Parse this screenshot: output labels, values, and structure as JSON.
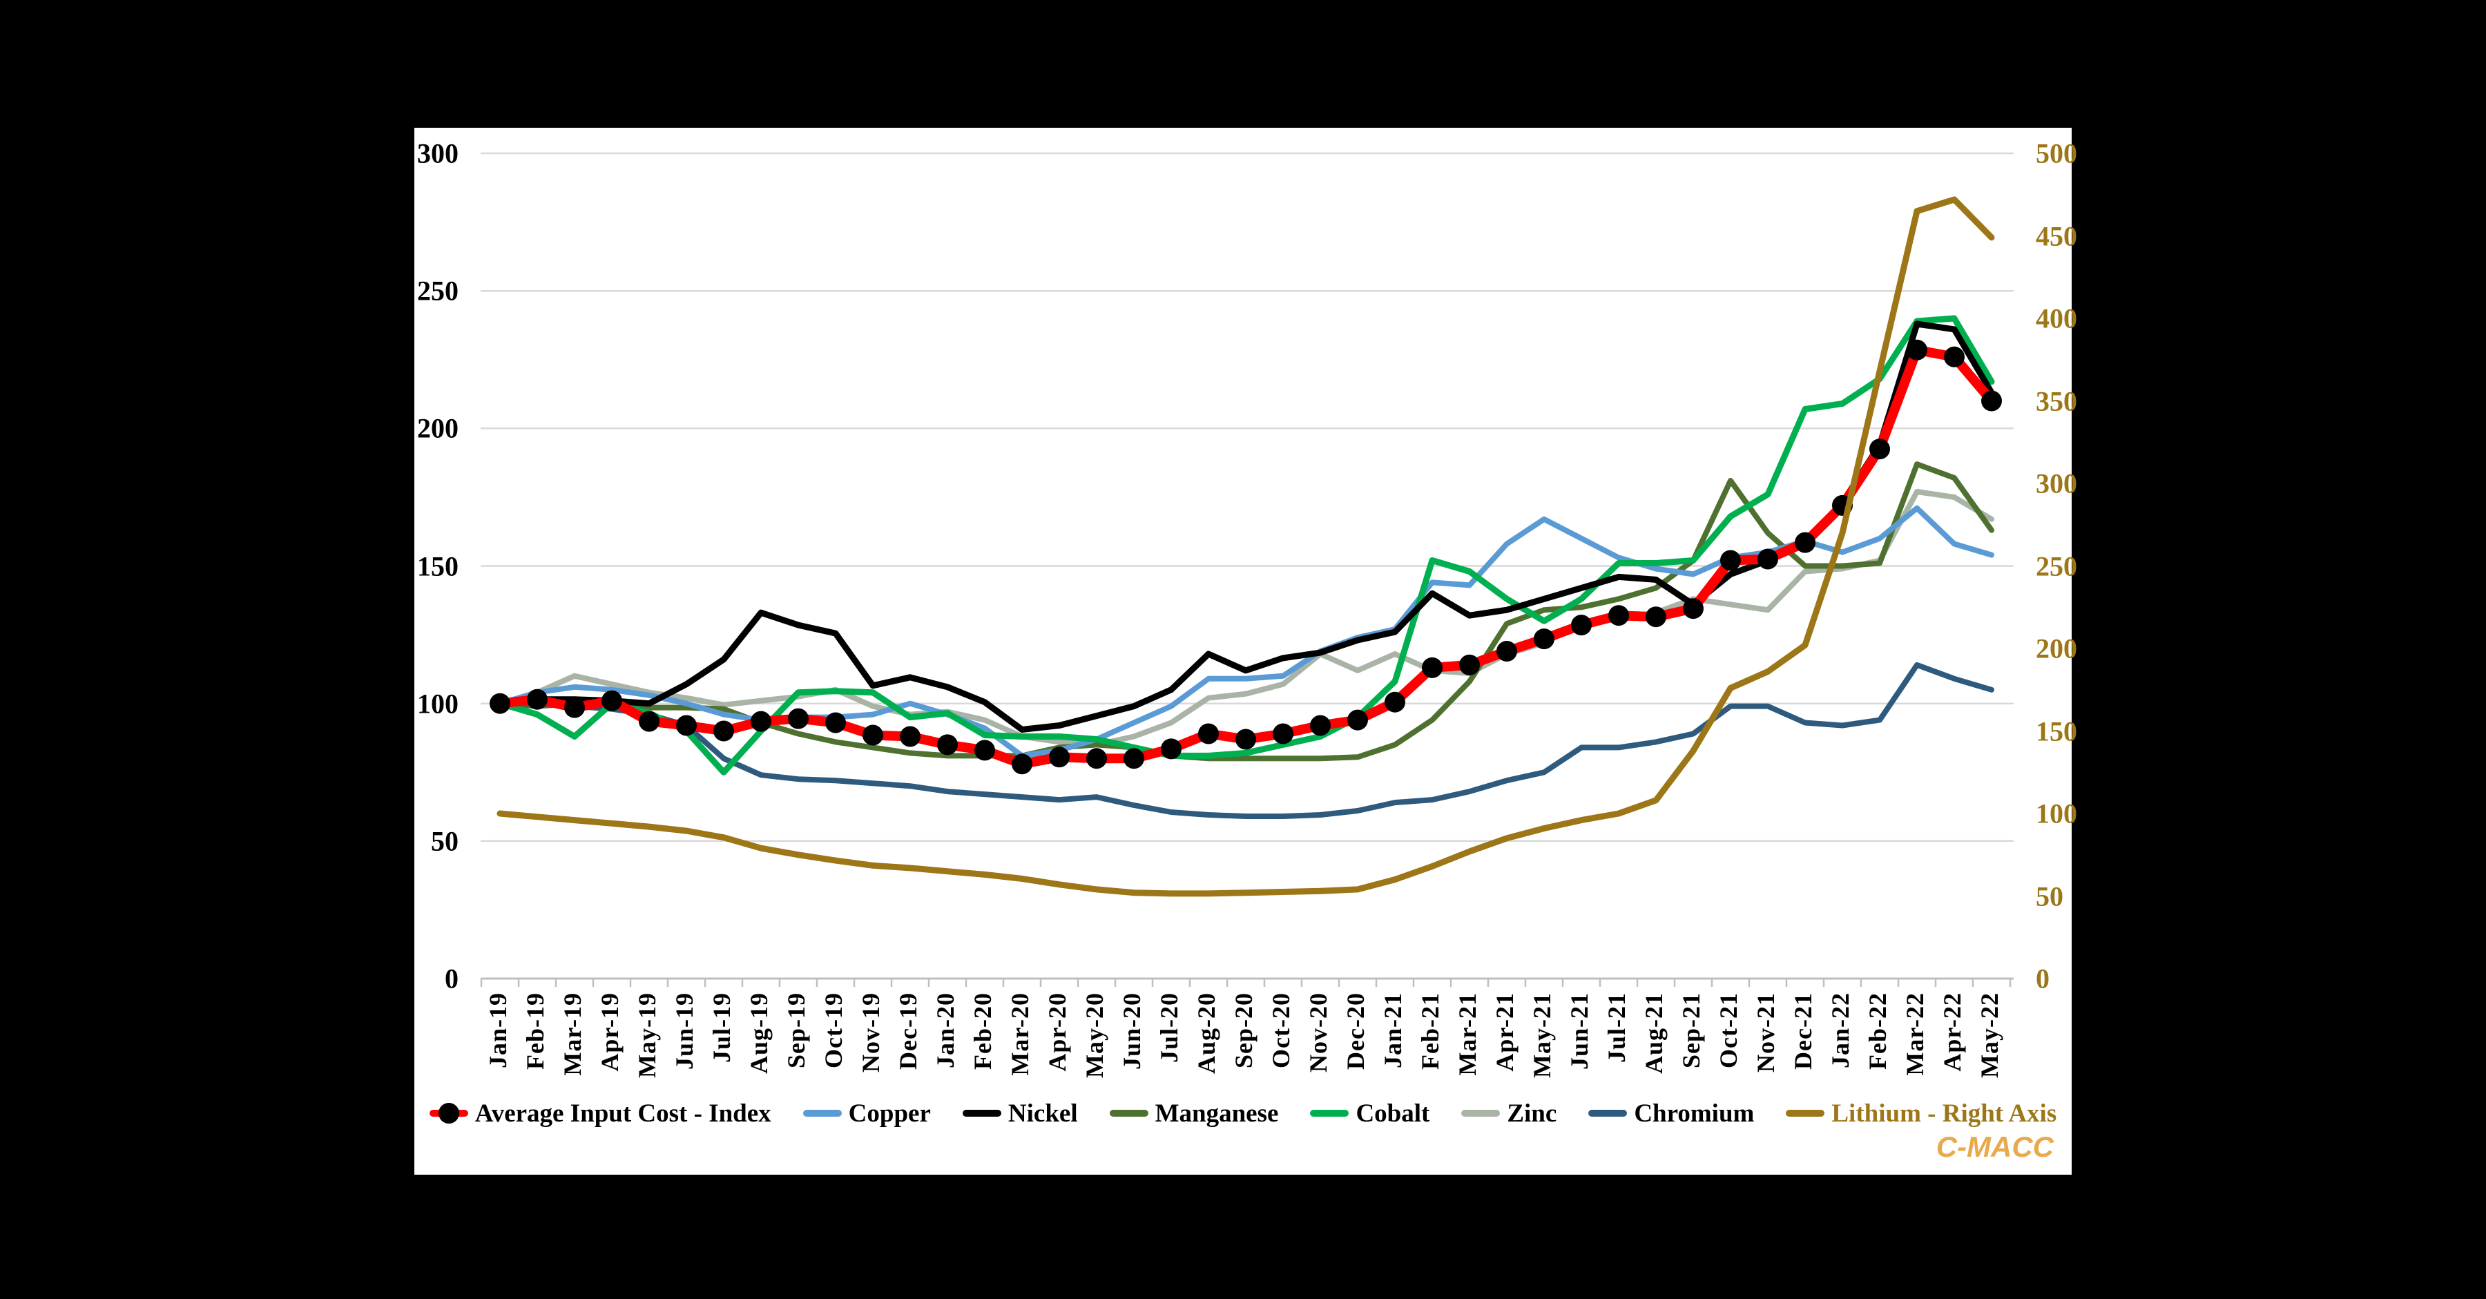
{
  "watermark": "C-MACC",
  "legend": {
    "items": [
      {
        "label": "Average Input Cost - Index",
        "series": "avg",
        "marker": "line-dot",
        "label_color": "#000000"
      },
      {
        "label": "Copper",
        "series": "copper",
        "marker": "line",
        "label_color": "#000000"
      },
      {
        "label": "Nickel",
        "series": "nickel",
        "marker": "line",
        "label_color": "#000000"
      },
      {
        "label": "Manganese",
        "series": "manganese",
        "marker": "line",
        "label_color": "#000000"
      },
      {
        "label": "Cobalt",
        "series": "cobalt",
        "marker": "line",
        "label_color": "#000000"
      },
      {
        "label": "Zinc",
        "series": "zinc",
        "marker": "line",
        "label_color": "#000000"
      },
      {
        "label": "Chromium",
        "series": "chromium",
        "marker": "line",
        "label_color": "#000000"
      },
      {
        "label": "Lithium - Right Axis",
        "series": "lithium",
        "marker": "line",
        "label_color": "#9C7617"
      }
    ]
  },
  "chart_data": {
    "type": "line",
    "title": "",
    "grid": true,
    "gridline_color": "#D9D9D9",
    "axis_line_color": "#BFBFBF",
    "left_axis": {
      "min": 0,
      "max": 300,
      "ticks": [
        0,
        50,
        100,
        150,
        200,
        250,
        300
      ],
      "color": "#000000"
    },
    "right_axis": {
      "min": 0,
      "max": 500,
      "ticks": [
        0,
        50,
        100,
        150,
        200,
        250,
        300,
        350,
        400,
        450,
        500
      ],
      "color": "#9C7617",
      "label": "Lithium - Right Axis"
    },
    "categories": [
      "Jan-19",
      "Feb-19",
      "Mar-19",
      "Apr-19",
      "May-19",
      "Jun-19",
      "Jul-19",
      "Aug-19",
      "Sep-19",
      "Oct-19",
      "Nov-19",
      "Dec-19",
      "Jan-20",
      "Feb-20",
      "Mar-20",
      "Apr-20",
      "May-20",
      "Jun-20",
      "Jul-20",
      "Aug-20",
      "Sep-20",
      "Oct-20",
      "Nov-20",
      "Dec-20",
      "Jan-21",
      "Feb-21",
      "Mar-21",
      "Apr-21",
      "May-21",
      "Jun-21",
      "Jul-21",
      "Aug-21",
      "Sep-21",
      "Oct-21",
      "Nov-21",
      "Dec-21",
      "Jan-22",
      "Feb-22",
      "Mar-22",
      "Apr-22",
      "May-22"
    ],
    "series": [
      {
        "id": "zinc",
        "name": "Zinc",
        "axis": "left",
        "color": "#A9B4A7",
        "width": 8,
        "values": [
          100,
          104,
          110,
          107,
          104,
          102,
          99.5,
          101,
          102.5,
          105,
          99,
          96,
          97,
          94,
          88,
          86,
          85,
          88,
          93,
          102,
          103.5,
          107,
          118,
          112,
          118,
          112,
          111,
          118,
          122,
          129,
          131,
          133,
          138,
          136,
          134,
          148,
          149,
          152,
          177,
          175,
          167
        ]
      },
      {
        "id": "manganese",
        "name": "Manganese",
        "axis": "left",
        "color": "#4E7130",
        "width": 8,
        "values": [
          100,
          99,
          100,
          99,
          98.5,
          98.5,
          98,
          93,
          89,
          86,
          84,
          82,
          81,
          81,
          81,
          84,
          85,
          84,
          81,
          80,
          80,
          80,
          80,
          80.5,
          85,
          94,
          108,
          129,
          134,
          135,
          138,
          142,
          152,
          181,
          162,
          150,
          150,
          151,
          187,
          182,
          163
        ]
      },
      {
        "id": "chromium",
        "name": "Chromium",
        "axis": "left",
        "color": "#2E5A7E",
        "width": 8,
        "values": [
          100,
          100,
          99,
          98,
          96,
          92,
          80,
          74,
          72.5,
          72,
          71,
          70,
          68,
          67,
          66,
          65,
          66,
          63,
          60.5,
          59.5,
          59,
          59,
          59.5,
          61,
          64,
          65,
          68,
          72,
          75,
          84,
          84,
          86,
          89,
          99,
          99,
          93,
          92,
          94,
          114,
          109,
          105
        ]
      },
      {
        "id": "copper",
        "name": "Copper",
        "axis": "left",
        "color": "#5B9BD5",
        "width": 8,
        "values": [
          100,
          104,
          106,
          105,
          103,
          100,
          96,
          94,
          95,
          95,
          96,
          100,
          96,
          91,
          81,
          83,
          87,
          93,
          99,
          109,
          109,
          110,
          119,
          124,
          127,
          144,
          143,
          158,
          167,
          160,
          153,
          149,
          147,
          153,
          155,
          159,
          155,
          160,
          171,
          158,
          154
        ]
      },
      {
        "id": "cobalt",
        "name": "Cobalt",
        "axis": "left",
        "color": "#00B050",
        "width": 9,
        "values": [
          100,
          96,
          88,
          100,
          96.5,
          90,
          75,
          90,
          104,
          104.5,
          104,
          95,
          96.5,
          88.5,
          88,
          88,
          87,
          84,
          81,
          81,
          82,
          85,
          88,
          95,
          108,
          152,
          148,
          138,
          130,
          138,
          151,
          151,
          152,
          168,
          176,
          207,
          209,
          218,
          239,
          240,
          217
        ]
      },
      {
        "id": "nickel",
        "name": "Nickel",
        "axis": "left",
        "color": "#000000",
        "width": 9,
        "values": [
          100,
          101.5,
          101.5,
          101,
          100,
          107,
          116,
          133,
          128.5,
          125.5,
          106.5,
          109.5,
          106,
          100.5,
          90.5,
          92,
          95.5,
          99,
          105,
          118,
          112,
          116.5,
          118.5,
          123,
          126,
          140,
          132,
          134,
          138,
          142,
          146,
          145,
          136,
          147,
          152,
          158,
          173,
          194,
          238,
          236,
          213
        ]
      },
      {
        "id": "avg",
        "name": "Average Input Cost - Index",
        "axis": "left",
        "color": "#FF0000",
        "width": 14,
        "marker": "circle",
        "marker_color": "#000000",
        "marker_r": 15,
        "values": [
          100,
          101.5,
          98.5,
          101,
          93.5,
          92,
          90,
          93.5,
          94.5,
          93,
          88.5,
          88,
          85,
          83,
          78,
          80.5,
          80,
          80,
          83.5,
          89,
          87,
          89,
          92,
          94,
          100.5,
          113,
          114,
          119,
          123.5,
          128.5,
          132,
          131.5,
          134.5,
          152,
          152.5,
          158.5,
          172,
          192.5,
          228.5,
          226,
          210
        ]
      },
      {
        "id": "lithium",
        "name": "Lithium - Right Axis",
        "axis": "right",
        "color": "#9C7617",
        "width": 9,
        "values": [
          100,
          98,
          96,
          94,
          92,
          89.5,
          85.5,
          79,
          75,
          71.5,
          68.5,
          67,
          65,
          63,
          60.5,
          57,
          54,
          52,
          51.5,
          51.5,
          52,
          52.5,
          53,
          54,
          60,
          68,
          77,
          85,
          91,
          96,
          100,
          108,
          138,
          176,
          186,
          202,
          270,
          368,
          465,
          472,
          449
        ]
      }
    ],
    "layout": {
      "x0": 124,
      "dx": 54,
      "y_base": 1232,
      "y_top": 37,
      "grid_x1": 96,
      "grid_x2": 2316,
      "tick_len": 12
    }
  }
}
